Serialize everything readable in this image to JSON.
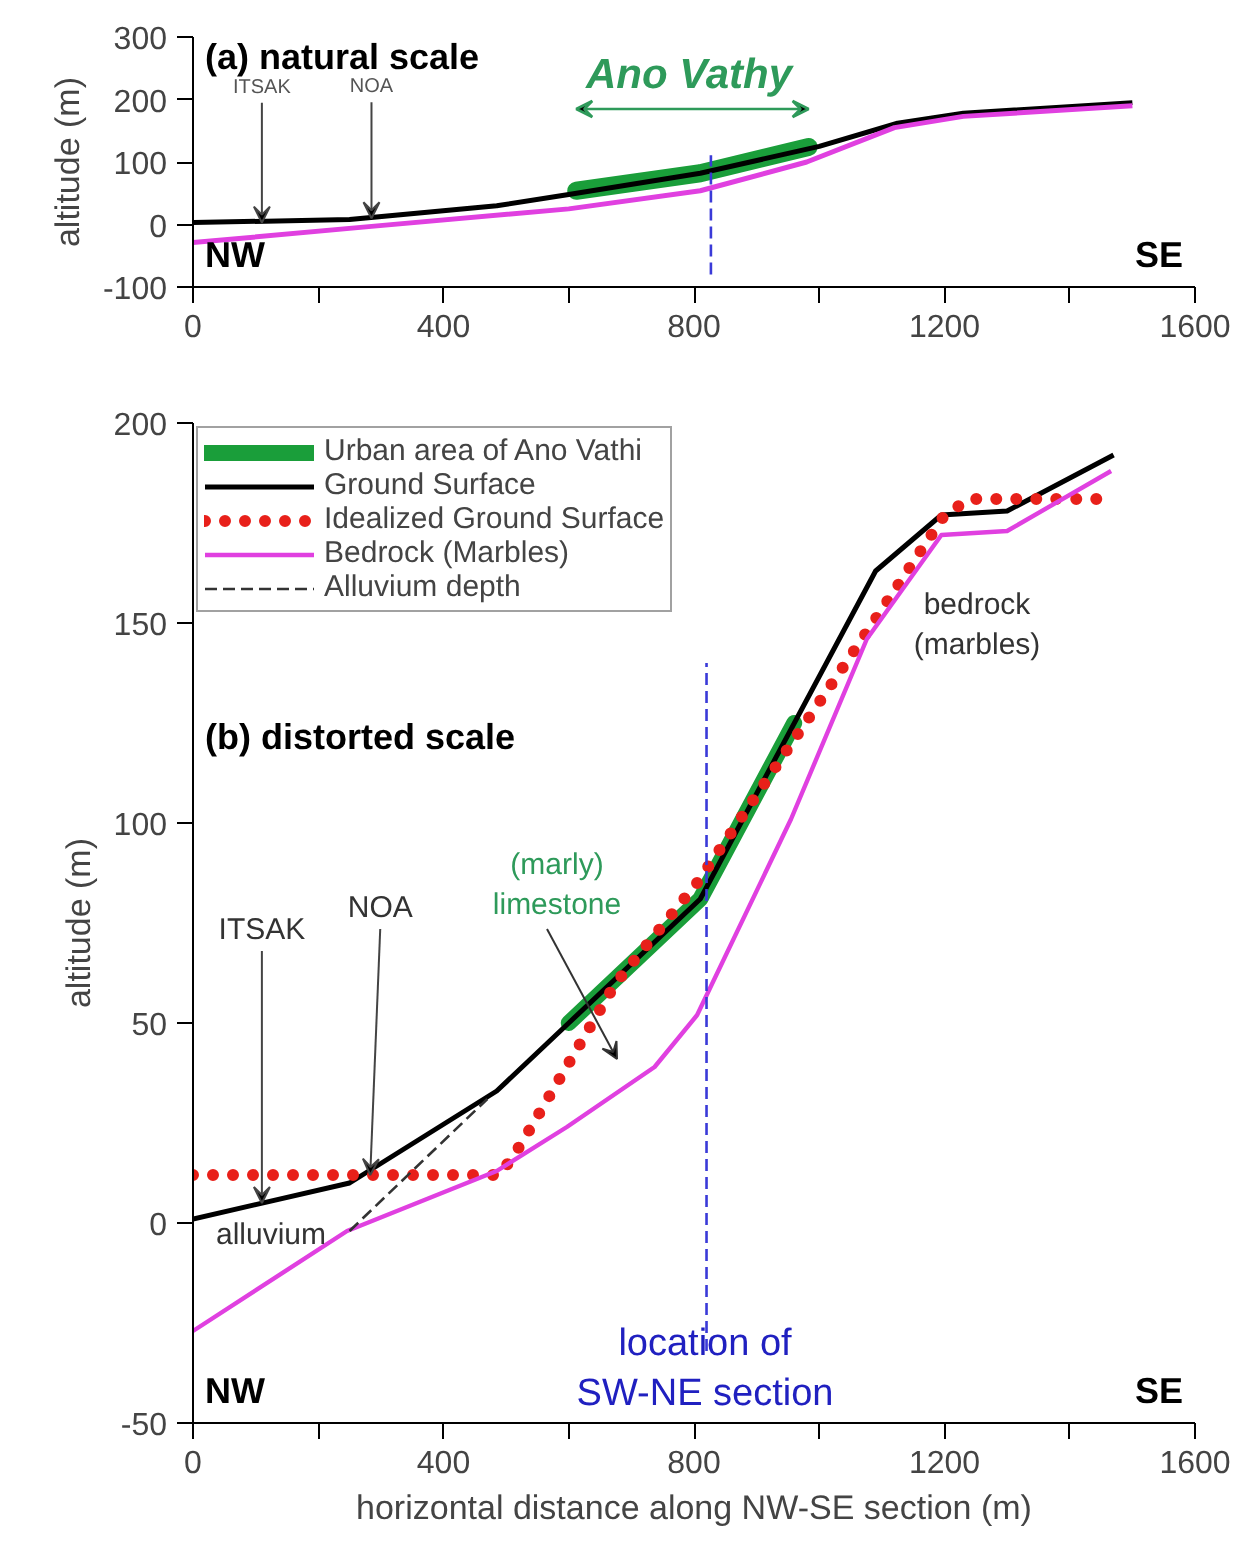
{
  "chart_data": [
    {
      "type": "line",
      "title": "(a) natural scale",
      "ylabel": "altitude (m)",
      "xlim": [
        0,
        1600
      ],
      "ylim": [
        -100,
        300
      ],
      "xticks": [
        0,
        {
          "value": 200,
          "label": null
        },
        400,
        {
          "value": 600,
          "label": null
        },
        800,
        {
          "value": 1000,
          "label": null
        },
        1200,
        {
          "value": 1400,
          "label": null
        },
        1600
      ],
      "yticks": [
        -100,
        0,
        100,
        200,
        300
      ],
      "grid": false,
      "legend": false,
      "series": [
        {
          "color": "#1a9e3a",
          "x": [
            612,
            810,
            983
          ],
          "values": [
            54,
            82,
            124
          ]
        },
        {
          "color": "#000000",
          "x": [
            0,
            250,
            485,
            600,
            810,
            1000,
            1125,
            1230,
            1500
          ],
          "values": [
            3,
            8,
            30,
            48,
            82,
            125,
            162,
            178,
            195
          ]
        },
        {
          "color": "#e040e0",
          "x": [
            0,
            285,
            600,
            810,
            980,
            1120,
            1230,
            1500
          ],
          "values": [
            -29,
            -3,
            25,
            54,
            100,
            155,
            173,
            190
          ]
        },
        {
          "color": "#3a3ad8",
          "line_style": "dashed",
          "x": [
            827,
            827
          ],
          "values": [
            -80,
            111
          ]
        }
      ],
      "annotations": [
        "Ano Vathy",
        {
          "text": "ITSAK",
          "x": 110,
          "y": 3
        },
        {
          "text": "NOA",
          "x": 285,
          "y": 10
        },
        "NW",
        "SE"
      ]
    },
    {
      "type": "line",
      "title": "(b) distorted scale",
      "xlabel": "horizontal distance along NW-SE section (m)",
      "ylabel": "altitude (m)",
      "xlim": [
        0,
        1600
      ],
      "ylim": [
        -50,
        200
      ],
      "xticks": [
        0,
        {
          "value": 200,
          "label": null
        },
        400,
        {
          "value": 600,
          "label": null
        },
        800,
        {
          "value": 1000,
          "label": null
        },
        1200,
        {
          "value": 1400,
          "label": null
        },
        1600
      ],
      "yticks": [
        -50,
        0,
        50,
        100,
        150,
        200
      ],
      "grid": false,
      "legend": "top left",
      "series": [
        {
          "name": "Urban area of Ano Vathi",
          "color": "#1a9e3a",
          "x": [
            600,
            810,
            960
          ],
          "values": [
            50,
            81,
            125
          ]
        },
        {
          "name": "Ground Surface",
          "color": "#000000",
          "x": [
            0,
            250,
            485,
            600,
            810,
            1090,
            1195,
            1300,
            1470
          ],
          "values": [
            1,
            10,
            33,
            50,
            81,
            163,
            177,
            178,
            192
          ]
        },
        {
          "name": "Idealized Ground Surface",
          "color": "#e8201a",
          "line_style": "dotted",
          "x": [
            0,
            490,
            525,
            675,
            805,
            1090,
            1200,
            1240,
            1470
          ],
          "values": [
            12,
            12,
            20,
            60,
            85,
            151,
            177,
            181,
            181
          ]
        },
        {
          "name": "Bedrock (Marbles)",
          "color": "#e040e0",
          "x": [
            0,
            246,
            485,
            597,
            737,
            805,
            955,
            1076,
            1195,
            1300,
            1466
          ],
          "values": [
            -27,
            -2,
            13,
            24,
            39,
            52,
            101,
            146,
            172,
            173,
            188
          ]
        },
        {
          "name": "Alluvium depth",
          "color": "#333333",
          "line_style": "dashed",
          "x": [
            250,
            470
          ],
          "values": [
            -2,
            31
          ]
        },
        {
          "color": "#3a3ad8",
          "line_style": "dashed",
          "x": [
            820,
            820
          ],
          "values": [
            -32,
            140
          ]
        }
      ],
      "annotations": [
        {
          "text": "ITSAK",
          "x": 110,
          "y": 5
        },
        {
          "text": "NOA",
          "x": 283,
          "y": 12
        },
        "(marly)\nlimestone",
        "bedrock\n(marbles)",
        "alluvium",
        "location of\nSW-NE section",
        "NW",
        "SE"
      ]
    }
  ]
}
